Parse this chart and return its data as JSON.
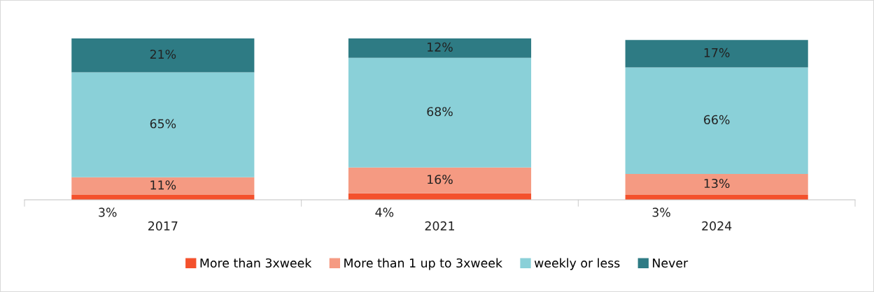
{
  "chart_data": {
    "type": "bar",
    "stacked": true,
    "legend": "bottom",
    "grid": false,
    "categories": [
      "2017",
      "2021",
      "2024"
    ],
    "series": [
      {
        "name": "More than 3xweek",
        "color": "#f4512c",
        "values": [
          3,
          4,
          3
        ],
        "value_labels": [
          "3%",
          "4%",
          "3%"
        ]
      },
      {
        "name": "More than 1 up to 3xweek",
        "color": "#f59a82",
        "values": [
          11,
          16,
          13
        ],
        "value_labels": [
          "11%",
          "16%",
          "13%"
        ]
      },
      {
        "name": "weekly or less",
        "color": "#8ad0d8",
        "values": [
          65,
          68,
          66
        ],
        "value_labels": [
          "65%",
          "68%",
          "66%"
        ]
      },
      {
        "name": "Never",
        "color": "#2e7b84",
        "values": [
          21,
          12,
          17
        ],
        "value_labels": [
          "21%",
          "12%",
          "17%"
        ]
      }
    ]
  }
}
